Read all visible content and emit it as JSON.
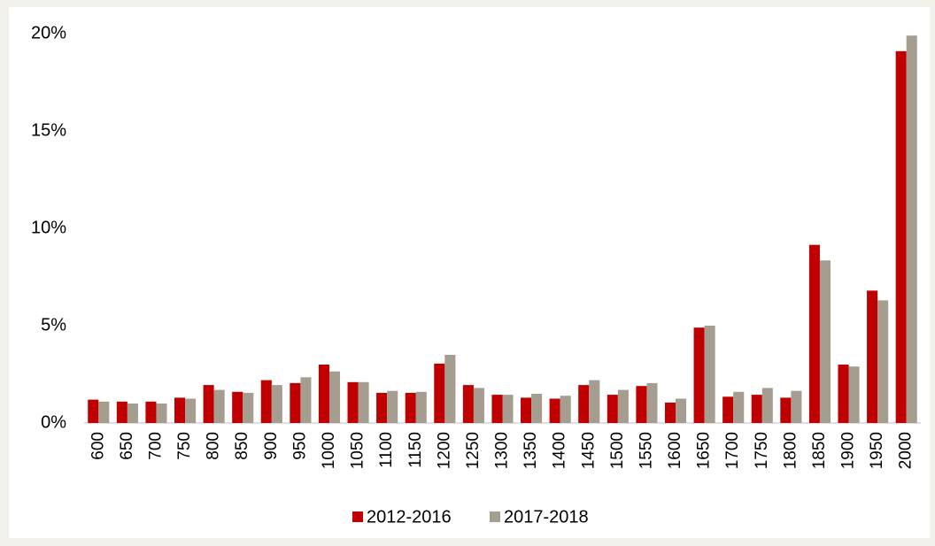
{
  "chart_data": {
    "type": "bar",
    "categories": [
      "600",
      "650",
      "700",
      "750",
      "800",
      "850",
      "900",
      "950",
      "1000",
      "1050",
      "1100",
      "1150",
      "1200",
      "1250",
      "1300",
      "1350",
      "1400",
      "1450",
      "1500",
      "1550",
      "1600",
      "1650",
      "1700",
      "1750",
      "1800",
      "1850",
      "1900",
      "1950",
      "2000"
    ],
    "series": [
      {
        "name": "2012-2016",
        "color": "#c00000",
        "values": [
          1.2,
          1.1,
          1.1,
          1.3,
          1.95,
          1.6,
          2.2,
          2.05,
          3.0,
          2.1,
          1.55,
          1.55,
          3.05,
          1.95,
          1.45,
          1.3,
          1.25,
          1.95,
          1.45,
          1.9,
          1.05,
          4.9,
          1.35,
          1.45,
          1.3,
          9.15,
          3.0,
          6.8,
          19.1
        ]
      },
      {
        "name": "2017-2018",
        "color": "#a59d8f",
        "values": [
          1.1,
          1.0,
          1.0,
          1.25,
          1.7,
          1.55,
          1.95,
          2.35,
          2.65,
          2.1,
          1.65,
          1.6,
          3.5,
          1.8,
          1.45,
          1.5,
          1.4,
          2.2,
          1.7,
          2.05,
          1.25,
          5.0,
          1.6,
          1.8,
          1.65,
          8.35,
          2.9,
          6.3,
          19.9
        ]
      }
    ],
    "ylim": [
      0,
      20
    ],
    "yticks": [
      {
        "value": 0,
        "label": "0%"
      },
      {
        "value": 5,
        "label": "5%"
      },
      {
        "value": 10,
        "label": "10%"
      },
      {
        "value": 15,
        "label": "15%"
      },
      {
        "value": 20,
        "label": "20%"
      }
    ],
    "grid": false,
    "legend": "bottom"
  }
}
